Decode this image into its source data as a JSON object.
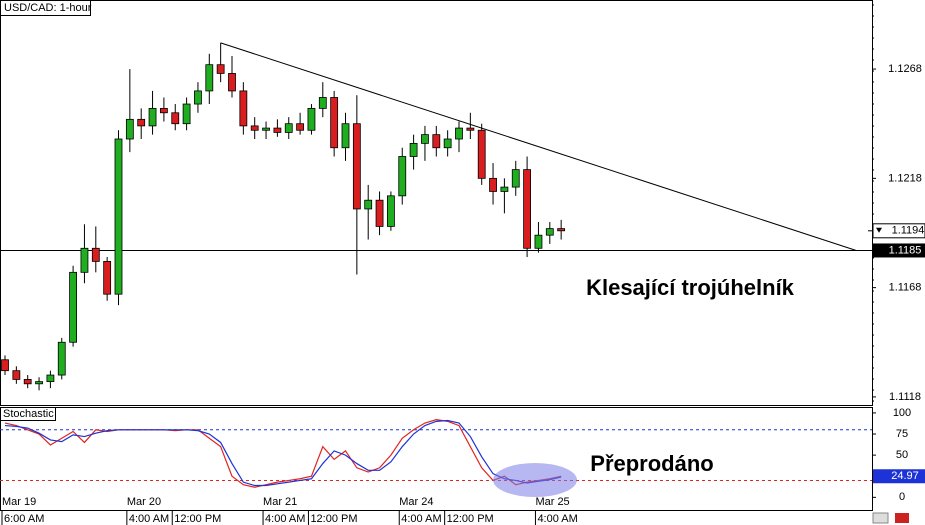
{
  "chart_data": {
    "type": "candlestick",
    "title": "USD/CAD: 1-hour",
    "open": [
      1.1135,
      1.113,
      1.1126,
      1.1124,
      1.1125,
      1.1128,
      1.1143,
      1.1175,
      1.1186,
      1.118,
      1.1165,
      1.1236,
      1.1245,
      1.1242,
      1.125,
      1.1248,
      1.1243,
      1.1252,
      1.1258,
      1.127,
      1.1266,
      1.1258,
      1.1242,
      1.124,
      1.1241,
      1.1239,
      1.1243,
      1.124,
      1.125,
      1.1255,
      1.1232,
      1.1243,
      1.1204,
      1.1208,
      1.1196,
      1.121,
      1.1228,
      1.1234,
      1.1238,
      1.1232,
      1.1236,
      1.1241,
      1.124,
      1.1218,
      1.1212,
      1.1214,
      1.1222,
      1.1186,
      1.1192,
      1.1195
    ],
    "high": [
      1.1137,
      1.1132,
      1.1128,
      1.1127,
      1.113,
      1.1145,
      1.1178,
      1.1197,
      1.1196,
      1.1182,
      1.124,
      1.1268,
      1.125,
      1.1258,
      1.1255,
      1.1252,
      1.1255,
      1.1262,
      1.1275,
      1.128,
      1.1274,
      1.1262,
      1.1246,
      1.1244,
      1.1245,
      1.1246,
      1.1248,
      1.1252,
      1.1262,
      1.1258,
      1.1248,
      1.1256,
      1.1215,
      1.1212,
      1.1212,
      1.1232,
      1.1238,
      1.1242,
      1.1242,
      1.124,
      1.1244,
      1.1248,
      1.1243,
      1.1225,
      1.1218,
      1.1226,
      1.1228,
      1.1198,
      1.1198,
      1.1199
    ],
    "low": [
      1.1128,
      1.1124,
      1.1122,
      1.1121,
      1.1122,
      1.1126,
      1.1141,
      1.117,
      1.1175,
      1.1162,
      1.116,
      1.123,
      1.1236,
      1.1238,
      1.1244,
      1.124,
      1.124,
      1.1248,
      1.1252,
      1.1262,
      1.1255,
      1.1238,
      1.1236,
      1.1236,
      1.1237,
      1.1236,
      1.1238,
      1.1238,
      1.1246,
      1.1228,
      1.1226,
      1.1174,
      1.119,
      1.1192,
      1.1194,
      1.1206,
      1.1222,
      1.1226,
      1.1228,
      1.1228,
      1.123,
      1.1236,
      1.1215,
      1.1206,
      1.1202,
      1.121,
      1.1182,
      1.1184,
      1.1188,
      1.119
    ],
    "close": [
      1.113,
      1.1126,
      1.1124,
      1.1125,
      1.1128,
      1.1143,
      1.1175,
      1.1186,
      1.118,
      1.1165,
      1.1236,
      1.1245,
      1.1242,
      1.125,
      1.1248,
      1.1243,
      1.1252,
      1.1258,
      1.127,
      1.1266,
      1.1258,
      1.1242,
      1.124,
      1.1241,
      1.1239,
      1.1243,
      1.124,
      1.125,
      1.1255,
      1.1232,
      1.1243,
      1.1204,
      1.1208,
      1.1196,
      1.121,
      1.1228,
      1.1234,
      1.1238,
      1.1232,
      1.1236,
      1.1241,
      1.124,
      1.1218,
      1.1212,
      1.1214,
      1.1222,
      1.1186,
      1.1192,
      1.1195,
      1.1194
    ],
    "up_color": "#1fae1f",
    "down_color": "#d81e1e",
    "ylim": [
      1.11143,
      1.12996
    ],
    "yticks": [
      1.1118,
      1.1168,
      1.1218,
      1.1268
    ],
    "last_price": 1.1194,
    "support_level": 1.1185,
    "trendline": {
      "x": [
        19,
        75
      ],
      "y": [
        1.128,
        1.1185
      ]
    },
    "annotation": "Klesající trojúhelník",
    "date_ticks": [
      {
        "value": 0,
        "label": "Mar 19"
      },
      {
        "value": 11,
        "label": "Mar 20"
      },
      {
        "value": 23,
        "label": "Mar 21"
      },
      {
        "value": 35,
        "label": "Mar 24"
      },
      {
        "value": 47,
        "label": "Mar 25"
      }
    ],
    "time_ticks": [
      {
        "value": 0,
        "label": "6:00 AM"
      },
      {
        "value": 11,
        "label": "4:00 AM"
      },
      {
        "value": 15,
        "label": "12:00 PM"
      },
      {
        "value": 23,
        "label": "4:00 AM"
      },
      {
        "value": 27,
        "label": "12:00 PM"
      },
      {
        "value": 35,
        "label": "4:00 AM"
      },
      {
        "value": 39,
        "label": "12:00 PM"
      },
      {
        "value": 47,
        "label": "4:00 AM"
      }
    ],
    "indicator": {
      "type": "line",
      "title": "Stochastic",
      "series": [
        {
          "color": "#e0261e",
          "values": [
            88,
            85,
            80,
            75,
            62,
            70,
            78,
            65,
            80,
            78,
            80,
            80,
            80,
            80,
            80,
            79,
            80,
            80,
            70,
            60,
            25,
            15,
            12,
            15,
            18,
            20,
            22,
            25,
            60,
            45,
            55,
            35,
            30,
            35,
            50,
            70,
            80,
            88,
            92,
            90,
            85,
            60,
            35,
            20,
            25,
            15,
            18,
            20,
            22,
            25
          ]
        },
        {
          "color": "#1d33d6",
          "values": [
            85,
            84,
            82,
            76,
            68,
            66,
            74,
            72,
            76,
            79,
            80,
            80,
            80,
            80,
            80,
            80,
            80,
            79,
            75,
            65,
            40,
            18,
            14,
            14,
            16,
            18,
            20,
            22,
            40,
            55,
            50,
            40,
            32,
            32,
            42,
            60,
            75,
            85,
            90,
            91,
            88,
            72,
            48,
            28,
            22,
            20,
            17,
            19,
            21,
            24
          ]
        }
      ],
      "ylim": [
        -15,
        107
      ],
      "yticks": [
        100,
        75,
        50,
        25,
        0
      ],
      "levels": [
        {
          "value": 80,
          "color": "#1d33d6"
        },
        {
          "value": 20,
          "color": "#e0261e"
        }
      ],
      "last_value": 24.97,
      "annotation": "Přeprodáno"
    }
  }
}
